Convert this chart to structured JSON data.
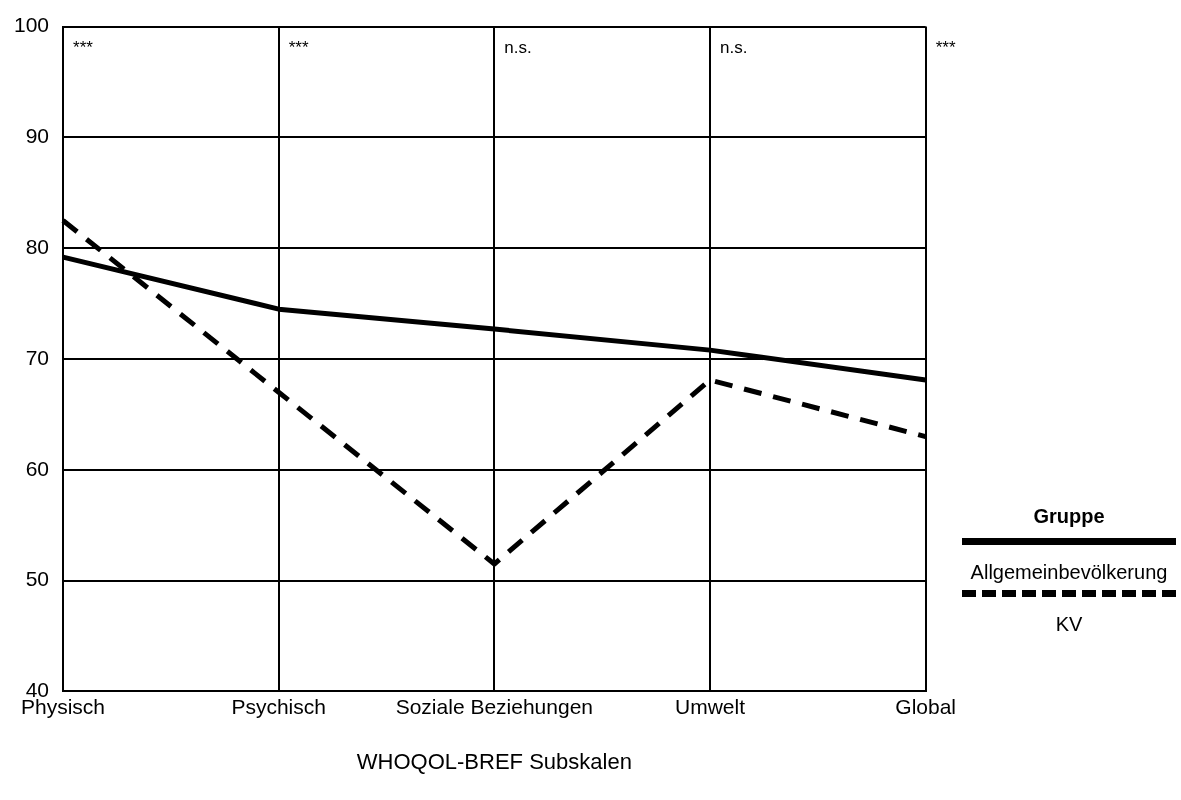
{
  "chart_data": {
    "type": "line",
    "xlabel": "WHOQOL-BREF Subskalen",
    "legend_title": "Gruppe",
    "categories": [
      "Physisch",
      "Psychisch",
      "Soziale Beziehungen",
      "Umwelt",
      "Global"
    ],
    "series": [
      {
        "name": "Allgemeinbevölkerung",
        "color": "#000000",
        "values": [
          79.2,
          74.5,
          72.7,
          70.8,
          68.1
        ],
        "line_style": "solid"
      },
      {
        "name": "KV",
        "color": "#000000",
        "values": [
          82.5,
          67,
          51.5,
          68.1,
          63
        ]
      }
    ],
    "line_style": "dashed",
    "ylim": [
      40,
      100
    ],
    "yticks": [
      40,
      50,
      60,
      70,
      80,
      90,
      100
    ],
    "grid": true,
    "legend": "right",
    "marker": "none",
    "annotations": [
      "***",
      "***",
      "n.s.",
      "n.s.",
      "***"
    ]
  }
}
